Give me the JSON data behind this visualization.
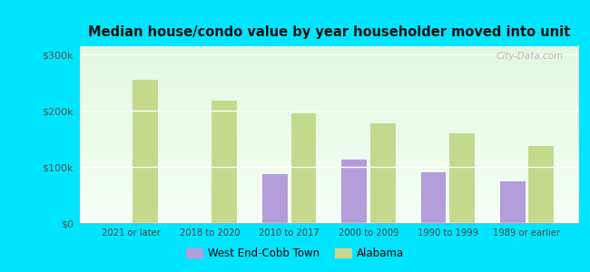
{
  "title": "Median house/condo value by year householder moved into unit",
  "categories": [
    "2021 or later",
    "2018 to 2020",
    "2010 to 2017",
    "2000 to 2009",
    "1990 to 1999",
    "1989 or earlier"
  ],
  "west_end_values": [
    null,
    null,
    88000,
    113000,
    90000,
    75000
  ],
  "alabama_values": [
    255000,
    218000,
    196000,
    178000,
    160000,
    138000
  ],
  "west_end_color": "#b39ddb",
  "alabama_color": "#c5d98d",
  "background_outer": "#00e5ff",
  "yticks": [
    0,
    100000,
    200000,
    300000
  ],
  "ylabels": [
    "$0",
    "$100k",
    "$200k",
    "$300k"
  ],
  "ylim": [
    0,
    315000
  ],
  "bar_width": 0.32,
  "legend_west_end": "West End-Cobb Town",
  "legend_alabama": "Alabama",
  "watermark": "City-Data.com"
}
